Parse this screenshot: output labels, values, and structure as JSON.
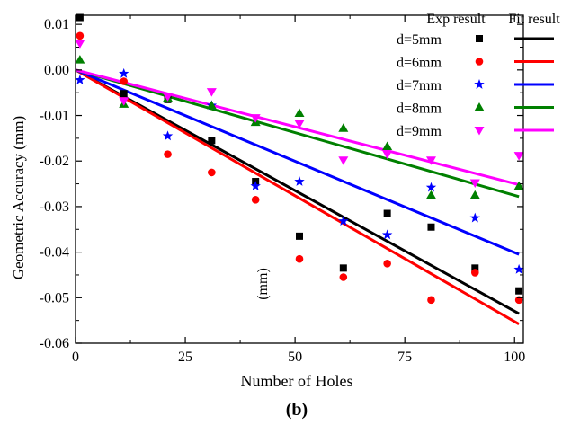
{
  "chart_data": {
    "type": "scatter",
    "panel_label": "(b)",
    "xlabel": "Number of Holes",
    "ylabel": "Geometric Accuracy (mm)",
    "stray_annotation": "(mm)",
    "xlim": [
      0,
      102
    ],
    "ylim": [
      -0.06,
      0.012
    ],
    "xticks": [
      0,
      25,
      50,
      75,
      100
    ],
    "xtick_labels": [
      "0",
      "25",
      "50",
      "75",
      "100"
    ],
    "yticks": [
      0.01,
      0.0,
      -0.01,
      -0.02,
      -0.03,
      -0.04,
      -0.05,
      -0.06
    ],
    "ytick_labels": [
      "0.01",
      "0.00",
      "-0.01",
      "-0.02",
      "-0.03",
      "-0.04",
      "-0.05",
      "-0.06"
    ],
    "legend": {
      "placement": "top-right",
      "header_exp": "Exp result",
      "header_fit": "Fit result"
    },
    "x": [
      1,
      11,
      21,
      31,
      41,
      51,
      61,
      71,
      81,
      91,
      101
    ],
    "series": [
      {
        "name": "d=5mm",
        "color": "#000000",
        "marker": "square",
        "values": [
          0.0115,
          -0.0052,
          -0.0065,
          -0.0155,
          -0.0245,
          -0.0365,
          -0.0435,
          -0.0315,
          -0.0345,
          -0.0435,
          -0.0485
        ],
        "fit": {
          "x": [
            0,
            101
          ],
          "y": [
            0.0,
            -0.0535
          ]
        }
      },
      {
        "name": "d=6mm",
        "color": "#ff0000",
        "marker": "circle",
        "values": [
          0.0075,
          -0.0025,
          -0.0185,
          -0.0225,
          -0.0285,
          -0.0415,
          -0.0455,
          -0.0425,
          -0.0505,
          -0.0445,
          -0.0505
        ],
        "fit": {
          "x": [
            0,
            101
          ],
          "y": [
            0.0,
            -0.0558
          ]
        }
      },
      {
        "name": "d=7mm",
        "color": "#0000ff",
        "marker": "star",
        "values": [
          -0.0022,
          -0.0008,
          -0.0145,
          -0.0078,
          -0.0255,
          -0.0245,
          -0.0332,
          -0.0362,
          -0.0258,
          -0.0325,
          -0.0438
        ],
        "fit": {
          "x": [
            0,
            101
          ],
          "y": [
            0.0,
            -0.0405
          ]
        }
      },
      {
        "name": "d=8mm",
        "color": "#008000",
        "marker": "triangle-up",
        "values": [
          0.0022,
          -0.0075,
          -0.0062,
          -0.0078,
          -0.0115,
          -0.0095,
          -0.0128,
          -0.0168,
          -0.0275,
          -0.0275,
          -0.0255
        ],
        "fit": {
          "x": [
            0,
            101
          ],
          "y": [
            0.0,
            -0.0278
          ]
        }
      },
      {
        "name": "d=9mm",
        "color": "#ff00ff",
        "marker": "triangle-down",
        "values": [
          0.0058,
          -0.0068,
          -0.0058,
          -0.0048,
          -0.0105,
          -0.0118,
          -0.0198,
          -0.0185,
          -0.0198,
          -0.0248,
          -0.0188
        ],
        "fit": {
          "x": [
            0,
            101
          ],
          "y": [
            0.0,
            -0.0252
          ]
        }
      }
    ]
  }
}
